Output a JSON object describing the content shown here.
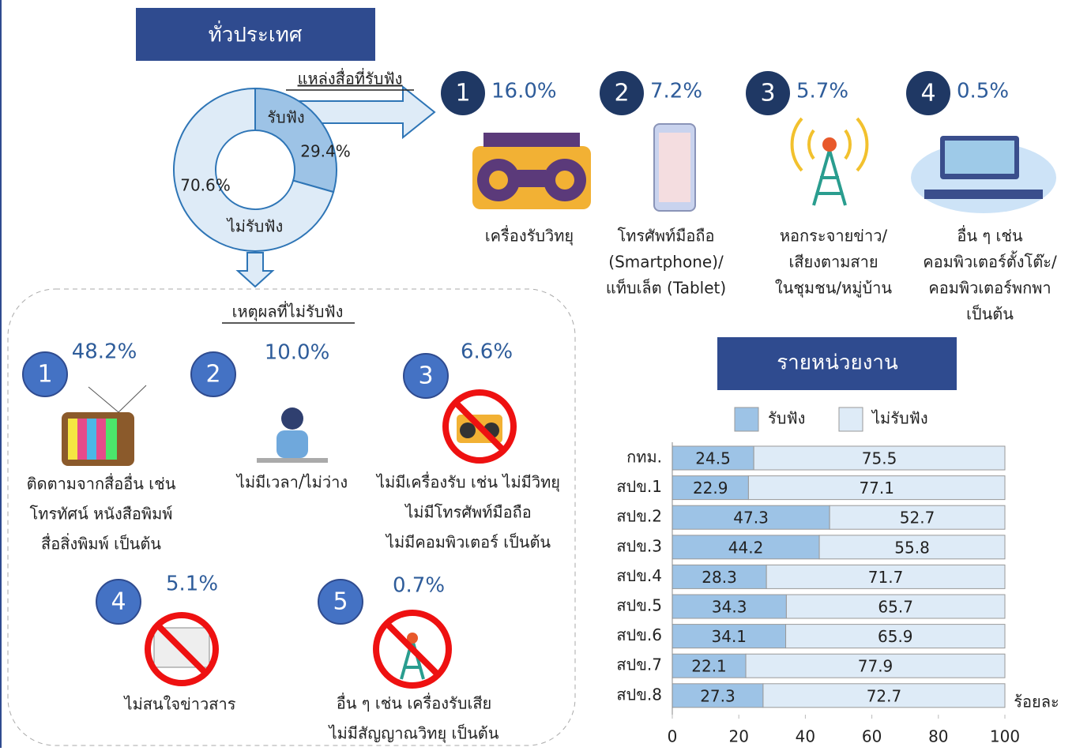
{
  "header": {
    "title": "ทั่วประเทศ"
  },
  "sources": {
    "title": "แหล่งสื่อที่รับฟัง",
    "items": [
      {
        "rank": "1",
        "percent": "16.0%",
        "lines": [
          "เครื่องรับวิทยุ"
        ]
      },
      {
        "rank": "2",
        "percent": "7.2%",
        "lines": [
          "โทรศัพท์มือถือ",
          "(Smartphone)/",
          "แท็บเล็ต (Tablet)"
        ]
      },
      {
        "rank": "3",
        "percent": "5.7%",
        "lines": [
          "หอกระจายข่าว/",
          "เสียงตามสาย",
          "ในชุมชน/หมู่บ้าน"
        ]
      },
      {
        "rank": "4",
        "percent": "0.5%",
        "lines": [
          "อื่น ๆ เช่น",
          "คอมพิวเตอร์ตั้งโต๊ะ/",
          "คอมพิวเตอร์พกพา",
          "เป็นต้น"
        ]
      }
    ]
  },
  "reasons": {
    "title": "เหตุผลที่ไม่รับฟัง",
    "items": [
      {
        "rank": "1",
        "percent": "48.2%",
        "lines": [
          "ติดตามจากสื่ออื่น เช่น",
          "โทรทัศน์ หนังสือพิมพ์",
          "สื่อสิ่งพิมพ์ เป็นต้น"
        ]
      },
      {
        "rank": "2",
        "percent": "10.0%",
        "lines": [
          "ไม่มีเวลา/ไม่ว่าง"
        ]
      },
      {
        "rank": "3",
        "percent": "6.6%",
        "lines": [
          "ไม่มีเครื่องรับ เช่น ไม่มีวิทยุ",
          "ไม่มีโทรศัพท์มือถือ",
          "ไม่มีคอมพิวเตอร์ เป็นต้น"
        ]
      },
      {
        "rank": "4",
        "percent": "5.1%",
        "lines": [
          "ไม่สนใจข่าวสาร"
        ]
      },
      {
        "rank": "5",
        "percent": "0.7%",
        "lines": [
          "อื่น ๆ เช่น เครื่องรับเสีย",
          "ไม่มีสัญญาณวิทยุ เป็นต้น"
        ]
      }
    ]
  },
  "chart_data": [
    {
      "type": "pie",
      "categories": [
        "รับฟัง",
        "ไม่รับฟัง"
      ],
      "values": [
        29.4,
        70.6
      ],
      "value_labels": [
        "29.4%",
        "70.6%"
      ],
      "colors": [
        "#9dc3e6",
        "#deebf7"
      ]
    },
    {
      "type": "bar",
      "title": "รายหน่วยงาน",
      "orientation": "horizontal",
      "stacked": true,
      "categories": [
        "กทม.",
        "สปข.1",
        "สปข.2",
        "สปข.3",
        "สปข.4",
        "สปข.5",
        "สปข.6",
        "สปข.7",
        "สปข.8"
      ],
      "series": [
        {
          "name": "รับฟัง",
          "color": "#9dc3e6",
          "values": [
            24.5,
            22.9,
            47.3,
            44.2,
            28.3,
            34.3,
            34.1,
            22.1,
            27.3
          ]
        },
        {
          "name": "ไม่รับฟัง",
          "color": "#deebf7",
          "values": [
            75.5,
            77.1,
            52.7,
            55.8,
            71.7,
            65.7,
            65.9,
            77.9,
            72.7
          ]
        }
      ],
      "xlim": [
        0,
        100
      ],
      "xticks": [
        0,
        20,
        40,
        60,
        80,
        100
      ],
      "xlabel": "ร้อยละ",
      "grid": false
    }
  ]
}
